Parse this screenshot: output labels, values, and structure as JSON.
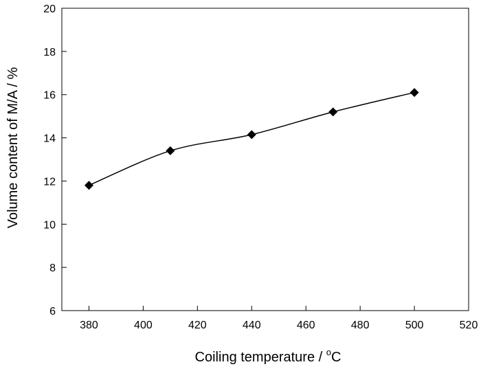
{
  "chart_data": {
    "type": "line",
    "title": "",
    "xlabel": "Coiling temperature / ",
    "xlabel_unit_sup": "o",
    "xlabel_unit": "C",
    "ylabel": "Volume content of M/A / %",
    "xlim": [
      370,
      520
    ],
    "ylim": [
      6,
      20
    ],
    "x_ticks": [
      380,
      400,
      420,
      440,
      460,
      480,
      500,
      520
    ],
    "y_ticks": [
      6,
      8,
      10,
      12,
      14,
      16,
      18,
      20
    ],
    "grid": false,
    "marker": "diamond",
    "series": [
      {
        "x": [
          380,
          410,
          440,
          470,
          500
        ],
        "values": [
          11.8,
          13.4,
          14.15,
          15.2,
          16.1
        ]
      }
    ],
    "colors": {
      "line": "#000000",
      "marker": "#000000"
    }
  }
}
